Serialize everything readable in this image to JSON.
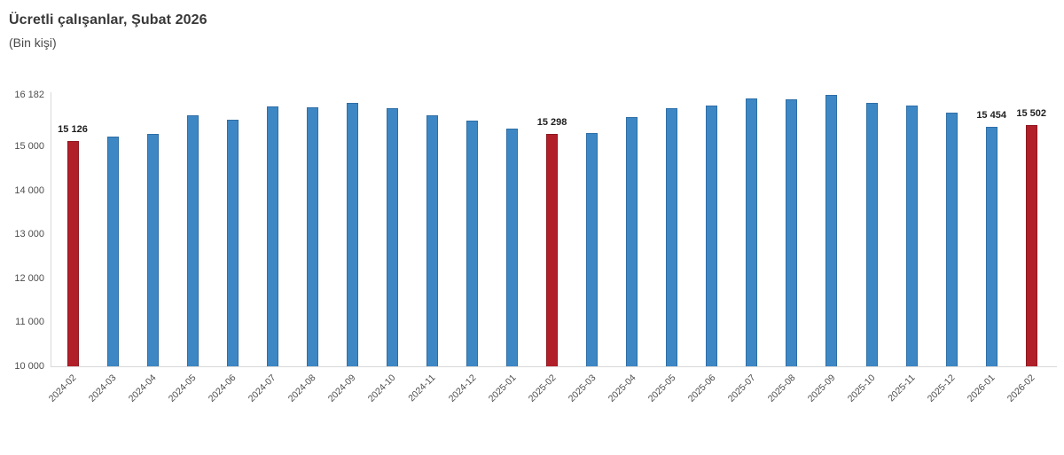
{
  "header": {
    "title": "Ücretli çalışanlar, Şubat 2026",
    "subtitle": "(Bin kişi)"
  },
  "chart_data": {
    "type": "bar",
    "title": "Ücretli çalışanlar, Şubat 2026",
    "subtitle": "(Bin kişi)",
    "xlabel": "",
    "ylabel": "Bin kişi",
    "ylim": [
      10000,
      16182
    ],
    "grid": false,
    "legend": "none",
    "categories": [
      "2024-02",
      "2024-03",
      "2024-04",
      "2024-05",
      "2024-06",
      "2024-07",
      "2024-08",
      "2024-09",
      "2024-10",
      "2024-11",
      "2024-12",
      "2025-01",
      "2025-02",
      "2025-03",
      "2025-04",
      "2025-05",
      "2025-06",
      "2025-07",
      "2025-08",
      "2025-09",
      "2025-10",
      "2025-11",
      "2025-12",
      "2026-01",
      "2026-02"
    ],
    "values": [
      15126,
      15230,
      15300,
      15720,
      15620,
      15920,
      15900,
      16000,
      15870,
      15720,
      15590,
      15420,
      15298,
      15320,
      15680,
      15880,
      15940,
      16110,
      16080,
      16182,
      16010,
      15930,
      15770,
      15454,
      15502
    ],
    "highlight_indices": [
      0,
      12,
      24
    ],
    "data_labels": [
      {
        "index": 0,
        "text": "15 126"
      },
      {
        "index": 12,
        "text": "15 298"
      },
      {
        "index": 23,
        "text": "15 454"
      },
      {
        "index": 24,
        "text": "15 502"
      }
    ],
    "yticks": [
      {
        "value": 16182,
        "label": "16 182"
      },
      {
        "value": 15000,
        "label": "15 000"
      },
      {
        "value": 14000,
        "label": "14 000"
      },
      {
        "value": 13000,
        "label": "13 000"
      },
      {
        "value": 12000,
        "label": "12 000"
      },
      {
        "value": 11000,
        "label": "11 000"
      },
      {
        "value": 10000,
        "label": "10 000"
      }
    ],
    "colors": {
      "bar": "#3d87c4",
      "bar_border": "#2f6ea6",
      "highlight": "#b11f29",
      "highlight_border": "#8e1821",
      "axis_line": "#d9d9d9",
      "text": "#4d4d4d",
      "title_text": "#383838"
    }
  }
}
